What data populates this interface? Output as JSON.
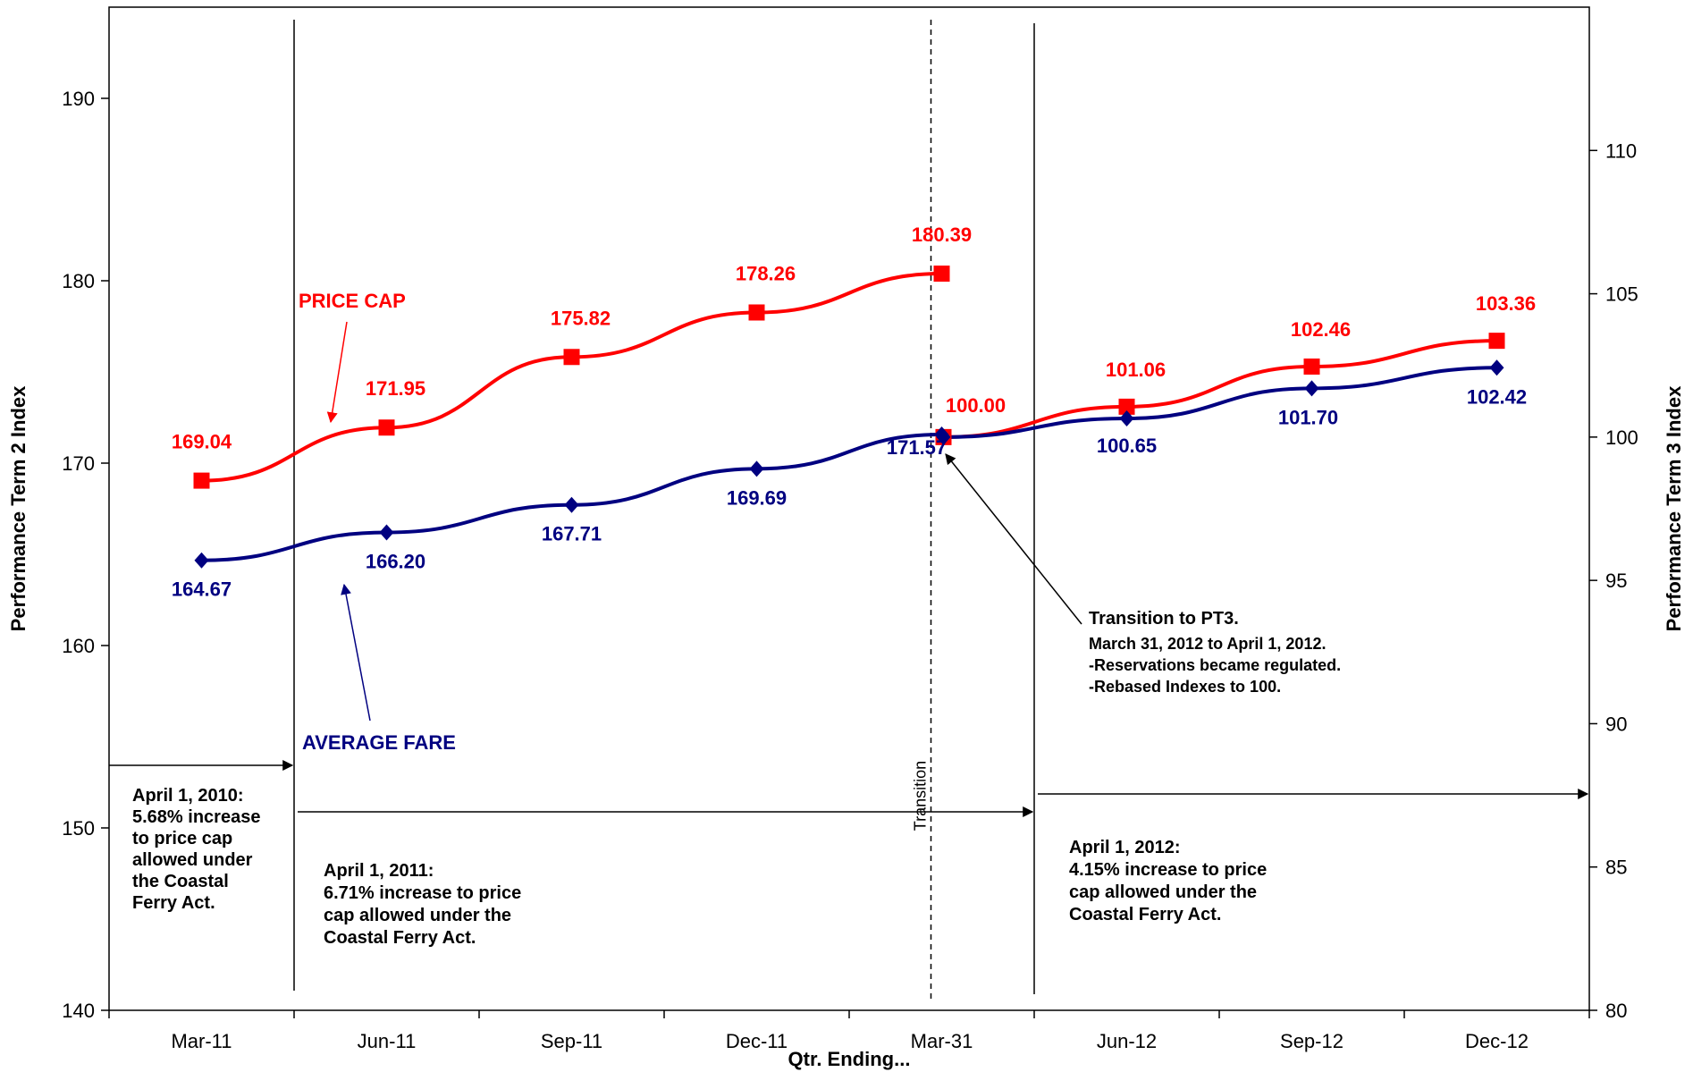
{
  "chart_data": {
    "type": "line",
    "categories": [
      "Mar-11",
      "Jun-11",
      "Sep-11",
      "Dec-11",
      "Mar-31",
      "Jun-12",
      "Sep-12",
      "Dec-12"
    ],
    "xlabel": "Qtr. Ending...",
    "ylabel_left": "Performance Term 2 Index",
    "ylabel_right": "Performance Term 3 Index",
    "ylim_left": [
      140,
      195
    ],
    "ylim_right": [
      80,
      115
    ],
    "yticks_left": [
      140,
      150,
      160,
      170,
      180,
      190
    ],
    "yticks_right": [
      80,
      85,
      90,
      95,
      100,
      105,
      110
    ],
    "grid": false,
    "colors": {
      "price_cap": "#ff0000",
      "average_fare": "#000080"
    },
    "series": [
      {
        "name": "PRICE CAP",
        "axis": "left",
        "x": [
          "Mar-11",
          "Jun-11",
          "Sep-11",
          "Dec-11",
          "Mar-31"
        ],
        "values": [
          169.04,
          171.95,
          175.82,
          178.26,
          180.39
        ],
        "labels": [
          "169.04",
          "171.95",
          "175.82",
          "178.26",
          "180.39"
        ],
        "marker": "square"
      },
      {
        "name": "PRICE CAP",
        "axis": "right",
        "x": [
          "Mar-31",
          "Jun-12",
          "Sep-12",
          "Dec-12"
        ],
        "values": [
          100.0,
          101.06,
          102.46,
          103.36
        ],
        "labels": [
          "100.00",
          "101.06",
          "102.46",
          "103.36"
        ],
        "marker": "square"
      },
      {
        "name": "AVERAGE FARE",
        "axis": "left",
        "x": [
          "Mar-11",
          "Jun-11",
          "Sep-11",
          "Dec-11",
          "Mar-31"
        ],
        "values": [
          164.67,
          166.2,
          167.71,
          169.69,
          171.57
        ],
        "labels": [
          "164.67",
          "166.20",
          "167.71",
          "169.69",
          "171.57"
        ],
        "marker": "diamond"
      },
      {
        "name": "AVERAGE FARE",
        "axis": "right",
        "x": [
          "Mar-31",
          "Jun-12",
          "Sep-12",
          "Dec-12"
        ],
        "values": [
          100.0,
          100.65,
          101.7,
          102.42
        ],
        "labels": [
          "",
          "100.65",
          "101.70",
          "102.42"
        ],
        "marker": "diamond"
      }
    ],
    "series_labels": {
      "price_cap": "PRICE CAP",
      "average_fare": "AVERAGE FARE"
    },
    "transition_label": "Transition",
    "annotations": {
      "note_2010": [
        "April 1, 2010:",
        "5.68% increase",
        "to price cap",
        "allowed under",
        "the Coastal",
        "Ferry Act."
      ],
      "note_2011": [
        "April 1, 2011:",
        "6.71% increase to price",
        "cap allowed under the",
        "Coastal Ferry Act."
      ],
      "note_2012": [
        "April 1, 2012:",
        "4.15% increase to price",
        "cap allowed under the",
        "Coastal Ferry Act."
      ],
      "note_pt3_title": "Transition to PT3.",
      "note_pt3_lines": [
        "March 31, 2012 to April 1, 2012.",
        "-Reservations became regulated.",
        "-Rebased Indexes to 100."
      ]
    }
  }
}
